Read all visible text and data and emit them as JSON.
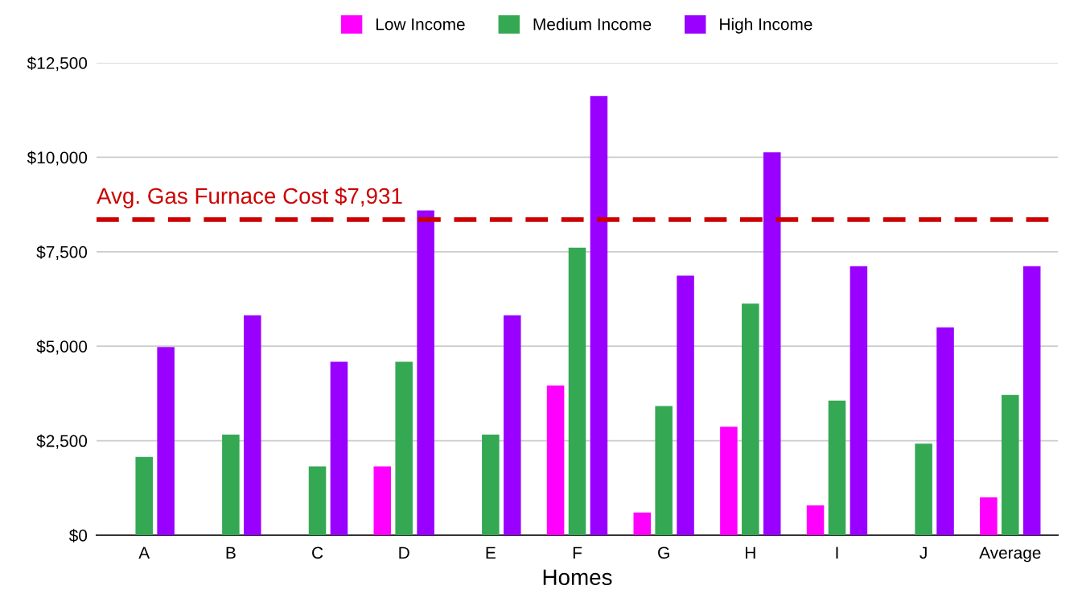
{
  "chart_data": {
    "type": "bar",
    "xlabel": "Homes",
    "categories": [
      "A",
      "B",
      "C",
      "D",
      "E",
      "F",
      "G",
      "H",
      "I",
      "J",
      "Average"
    ],
    "series": [
      {
        "name": "Low Income",
        "color": "#ff00ff",
        "values": [
          null,
          null,
          null,
          1820,
          null,
          3960,
          600,
          2870,
          790,
          null,
          1000
        ]
      },
      {
        "name": "Medium Income",
        "color": "#34a853",
        "values": [
          2070,
          2660,
          1820,
          4590,
          2660,
          7610,
          3420,
          6130,
          3560,
          2420,
          3710
        ]
      },
      {
        "name": "High Income",
        "color": "#9900ff",
        "values": [
          4980,
          5820,
          4590,
          8590,
          5820,
          11620,
          6870,
          10130,
          7120,
          5500,
          7120
        ]
      }
    ],
    "ylim": [
      0,
      12500
    ],
    "yticks": [
      {
        "value": 0,
        "label": "$0"
      },
      {
        "value": 2500,
        "label": "$2,500"
      },
      {
        "value": 5000,
        "label": "$5,000"
      },
      {
        "value": 7500,
        "label": "$7,500"
      },
      {
        "value": 10000,
        "label": "$10,000"
      },
      {
        "value": 12500,
        "label": "$12,500"
      }
    ],
    "ref_lines": [
      {
        "axis": "y",
        "value": 8350,
        "label": "Avg. Gas Furnace Cost $7,931",
        "color": "#cc0000",
        "line_style": "dashed"
      }
    ],
    "grid": "y",
    "legend": "top"
  }
}
